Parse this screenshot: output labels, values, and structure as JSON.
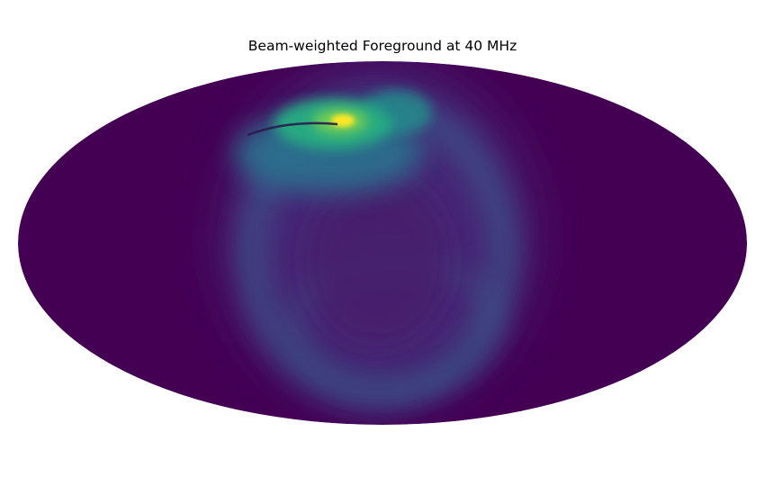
{
  "chart_data": {
    "type": "heatmap",
    "projection": "mollweide",
    "title": "Beam-weighted Foreground at 40 MHz",
    "colormap": "viridis",
    "colorbar": false,
    "grid": false,
    "background_color": "#440154",
    "peak_color": "#fde725"
  }
}
